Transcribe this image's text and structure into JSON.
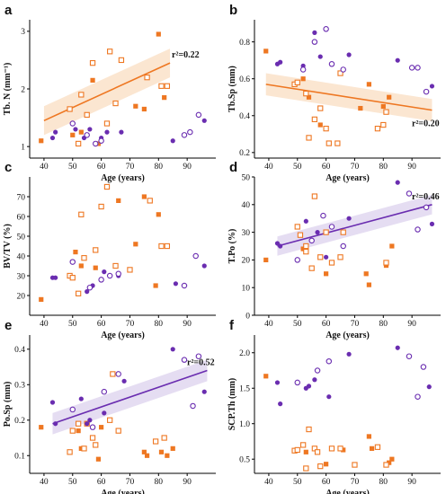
{
  "colors": {
    "orange": "#ee7722",
    "purple": "#6a2db0",
    "orange_band": "#f6c79a",
    "purple_band": "#c5b3e3"
  },
  "xlabel_shared": "Age (years)",
  "chart_data": [
    {
      "type": "scatter",
      "panel": "a",
      "ylabel": "Tb. N (mm⁻¹)",
      "xlim": [
        35,
        100
      ],
      "xticks": [
        40,
        50,
        60,
        70,
        80,
        90
      ],
      "ylim": [
        0.8,
        3.2
      ],
      "yticks": [
        1,
        2,
        3
      ],
      "ytick_labels": [
        "1",
        "2",
        "3"
      ],
      "fit": {
        "series": "orange",
        "x": [
          40,
          84
        ],
        "y": [
          1.45,
          2.45
        ],
        "band": 0.25,
        "label": "r²=0.22"
      },
      "series": [
        {
          "color": "orange",
          "fill": "filled",
          "x": [
            39,
            50,
            53,
            57,
            59,
            72,
            75,
            80,
            82
          ],
          "y": [
            1.1,
            1.2,
            1.25,
            2.15,
            1.05,
            1.7,
            1.65,
            2.95,
            1.85
          ]
        },
        {
          "color": "orange",
          "fill": "hollow",
          "x": [
            49,
            52,
            53,
            55,
            57,
            62,
            63,
            65,
            67,
            76,
            81,
            83
          ],
          "y": [
            1.65,
            1.05,
            1.9,
            1.55,
            2.45,
            1.4,
            2.65,
            1.75,
            2.5,
            2.2,
            2.05,
            2.05
          ]
        },
        {
          "color": "purple",
          "fill": "filled",
          "x": [
            43,
            44,
            51,
            54,
            56,
            60,
            62,
            67,
            85,
            96
          ],
          "y": [
            1.15,
            1.25,
            1.3,
            1.15,
            1.3,
            1.15,
            1.25,
            1.25,
            1.1,
            1.45
          ]
        },
        {
          "color": "purple",
          "fill": "hollow",
          "x": [
            50,
            55,
            58,
            60,
            89,
            91,
            94
          ],
          "y": [
            1.4,
            1.2,
            1.05,
            1.1,
            1.2,
            1.25,
            1.55
          ]
        }
      ]
    },
    {
      "type": "scatter",
      "panel": "b",
      "ylabel": "Tb.Sp (mm)",
      "xlim": [
        35,
        100
      ],
      "xticks": [
        40,
        50,
        60,
        70,
        80,
        90
      ],
      "ylim": [
        0.17,
        0.92
      ],
      "yticks": [
        0.2,
        0.4,
        0.6,
        0.8
      ],
      "ytick_labels": [
        "0.2",
        "0.4",
        "0.6",
        "0.8"
      ],
      "fit": {
        "series": "orange",
        "x": [
          39,
          97
        ],
        "y": [
          0.57,
          0.43
        ],
        "band": 0.06,
        "label": "r²=0.20"
      },
      "series": [
        {
          "color": "orange",
          "fill": "filled",
          "x": [
            39,
            52,
            54,
            58,
            72,
            75,
            80,
            82
          ],
          "y": [
            0.75,
            0.6,
            0.5,
            0.35,
            0.44,
            0.57,
            0.45,
            0.5
          ]
        },
        {
          "color": "orange",
          "fill": "hollow",
          "x": [
            49,
            50,
            53,
            54,
            56,
            58,
            60,
            61,
            64,
            65,
            78,
            80,
            81
          ],
          "y": [
            0.57,
            0.58,
            0.52,
            0.28,
            0.38,
            0.44,
            0.33,
            0.25,
            0.25,
            0.63,
            0.33,
            0.35,
            0.42
          ]
        },
        {
          "color": "purple",
          "fill": "filled",
          "x": [
            43,
            44,
            52,
            56,
            58,
            68,
            85,
            97
          ],
          "y": [
            0.68,
            0.69,
            0.67,
            0.85,
            0.72,
            0.73,
            0.7,
            0.56
          ]
        },
        {
          "color": "purple",
          "fill": "hollow",
          "x": [
            52,
            56,
            60,
            62,
            66,
            90,
            92,
            95
          ],
          "y": [
            0.65,
            0.8,
            0.87,
            0.68,
            0.65,
            0.66,
            0.66,
            0.53
          ]
        }
      ]
    },
    {
      "type": "scatter",
      "panel": "c",
      "ylabel": "BV/TV (%)",
      "xlim": [
        35,
        100
      ],
      "xticks": [
        40,
        50,
        60,
        70,
        80,
        90
      ],
      "ylim": [
        10,
        80
      ],
      "yticks": [
        20,
        30,
        40,
        50,
        60,
        70
      ],
      "ytick_labels": [
        "20",
        "30",
        "40",
        "50",
        "60",
        "70"
      ],
      "fit": null,
      "series": [
        {
          "color": "orange",
          "fill": "filled",
          "x": [
            39,
            51,
            53,
            58,
            66,
            72,
            75,
            79,
            80
          ],
          "y": [
            18,
            42,
            35,
            34,
            68,
            46,
            70,
            25,
            61
          ]
        },
        {
          "color": "orange",
          "fill": "hollow",
          "x": [
            49,
            50,
            52,
            53,
            54,
            58,
            60,
            62,
            65,
            70,
            77,
            81,
            83
          ],
          "y": [
            30,
            29,
            21,
            61,
            39,
            43,
            65,
            75,
            35,
            33,
            68,
            45,
            45
          ]
        },
        {
          "color": "purple",
          "fill": "filled",
          "x": [
            43,
            44,
            55,
            57,
            61,
            66,
            86,
            96
          ],
          "y": [
            29,
            29,
            22,
            25,
            32,
            30,
            26,
            35
          ]
        },
        {
          "color": "purple",
          "fill": "hollow",
          "x": [
            50,
            56,
            60,
            63,
            66,
            89,
            93
          ],
          "y": [
            37,
            24,
            28,
            30,
            31,
            25,
            40
          ]
        }
      ]
    },
    {
      "type": "scatter",
      "panel": "d",
      "ylabel": "T.Po (%)",
      "xlim": [
        35,
        100
      ],
      "xticks": [
        40,
        50,
        60,
        70,
        80,
        90
      ],
      "ylim": [
        0,
        50
      ],
      "yticks": [
        0,
        10,
        20,
        30,
        40,
        50
      ],
      "ytick_labels": [
        "0",
        "10",
        "20",
        "30",
        "40",
        "50"
      ],
      "fit": {
        "series": "purple",
        "x": [
          43,
          97
        ],
        "y": [
          25,
          40
        ],
        "band": 3.5,
        "label": "r²=0.46"
      },
      "series": [
        {
          "color": "orange",
          "fill": "filled",
          "x": [
            39,
            52,
            60,
            74,
            75,
            81,
            83
          ],
          "y": [
            20,
            24,
            15,
            15,
            11,
            18,
            25
          ]
        },
        {
          "color": "orange",
          "fill": "hollow",
          "x": [
            50,
            51,
            53,
            53,
            55,
            56,
            58,
            60,
            62,
            65,
            66,
            81
          ],
          "y": [
            32,
            29,
            25,
            23,
            17,
            43,
            21,
            30,
            19,
            21,
            30,
            19
          ]
        },
        {
          "color": "purple",
          "fill": "filled",
          "x": [
            43,
            44,
            53,
            57,
            60,
            68,
            85,
            97
          ],
          "y": [
            26,
            25,
            34,
            30,
            21,
            35,
            48,
            33
          ]
        },
        {
          "color": "purple",
          "fill": "hollow",
          "x": [
            50,
            55,
            59,
            62,
            66,
            89,
            92,
            95
          ],
          "y": [
            20,
            27,
            36,
            32,
            25,
            44,
            31,
            39
          ]
        }
      ]
    },
    {
      "type": "scatter",
      "panel": "e",
      "ylabel": "Po.Sp (mm)",
      "xlim": [
        35,
        100
      ],
      "xticks": [
        40,
        50,
        60,
        70,
        80,
        90
      ],
      "ylim": [
        0.05,
        0.44
      ],
      "yticks": [
        0.1,
        0.2,
        0.3,
        0.4
      ],
      "ytick_labels": [
        "0.1",
        "0.2",
        "0.3",
        "0.4"
      ],
      "fit": {
        "series": "purple",
        "x": [
          43,
          97
        ],
        "y": [
          0.19,
          0.34
        ],
        "band": 0.03,
        "label": "r²=0.52"
      },
      "series": [
        {
          "color": "orange",
          "fill": "filled",
          "x": [
            39,
            52,
            53,
            59,
            60,
            75,
            76,
            81,
            83,
            85
          ],
          "y": [
            0.18,
            0.17,
            0.12,
            0.09,
            0.18,
            0.11,
            0.1,
            0.11,
            0.1,
            0.12
          ]
        },
        {
          "color": "orange",
          "fill": "hollow",
          "x": [
            49,
            50,
            52,
            54,
            55,
            57,
            58,
            63,
            64,
            66,
            79,
            82
          ],
          "y": [
            0.11,
            0.17,
            0.19,
            0.12,
            0.19,
            0.15,
            0.13,
            0.2,
            0.33,
            0.17,
            0.14,
            0.15
          ]
        },
        {
          "color": "purple",
          "fill": "filled",
          "x": [
            43,
            44,
            53,
            55,
            56,
            61,
            68,
            85,
            96
          ],
          "y": [
            0.25,
            0.19,
            0.26,
            0.19,
            0.2,
            0.22,
            0.31,
            0.4,
            0.28
          ]
        },
        {
          "color": "purple",
          "fill": "hollow",
          "x": [
            50,
            57,
            61,
            66,
            89,
            92,
            94
          ],
          "y": [
            0.23,
            0.18,
            0.28,
            0.33,
            0.37,
            0.24,
            0.38
          ]
        }
      ]
    },
    {
      "type": "scatter",
      "panel": "f",
      "ylabel": "SCP.Th (mm)",
      "xlim": [
        35,
        100
      ],
      "xticks": [
        40,
        50,
        60,
        70,
        80,
        90
      ],
      "ylim": [
        0.3,
        2.25
      ],
      "yticks": [
        0.5,
        1.0,
        1.5,
        2.0
      ],
      "ytick_labels": [
        "0.5",
        "1.0",
        "1.5",
        "2.0"
      ],
      "fit": null,
      "series": [
        {
          "color": "orange",
          "fill": "filled",
          "x": [
            39,
            53,
            60,
            66,
            75,
            76,
            82,
            83
          ],
          "y": [
            1.67,
            0.6,
            0.43,
            0.63,
            0.82,
            0.65,
            0.45,
            0.5
          ]
        },
        {
          "color": "orange",
          "fill": "hollow",
          "x": [
            49,
            50,
            52,
            53,
            54,
            56,
            57,
            58,
            62,
            65,
            70,
            78,
            81
          ],
          "y": [
            0.62,
            0.63,
            0.7,
            0.37,
            0.92,
            0.65,
            0.6,
            0.4,
            0.65,
            0.65,
            0.42,
            0.67,
            0.42
          ]
        },
        {
          "color": "purple",
          "fill": "filled",
          "x": [
            43,
            44,
            53,
            54,
            56,
            61,
            68,
            85,
            96
          ],
          "y": [
            1.58,
            1.28,
            1.5,
            1.53,
            1.62,
            1.38,
            1.98,
            2.07,
            1.52
          ]
        },
        {
          "color": "purple",
          "fill": "hollow",
          "x": [
            50,
            57,
            61,
            89,
            92,
            94
          ],
          "y": [
            1.58,
            1.75,
            1.88,
            1.95,
            1.38,
            1.8
          ]
        }
      ]
    }
  ]
}
